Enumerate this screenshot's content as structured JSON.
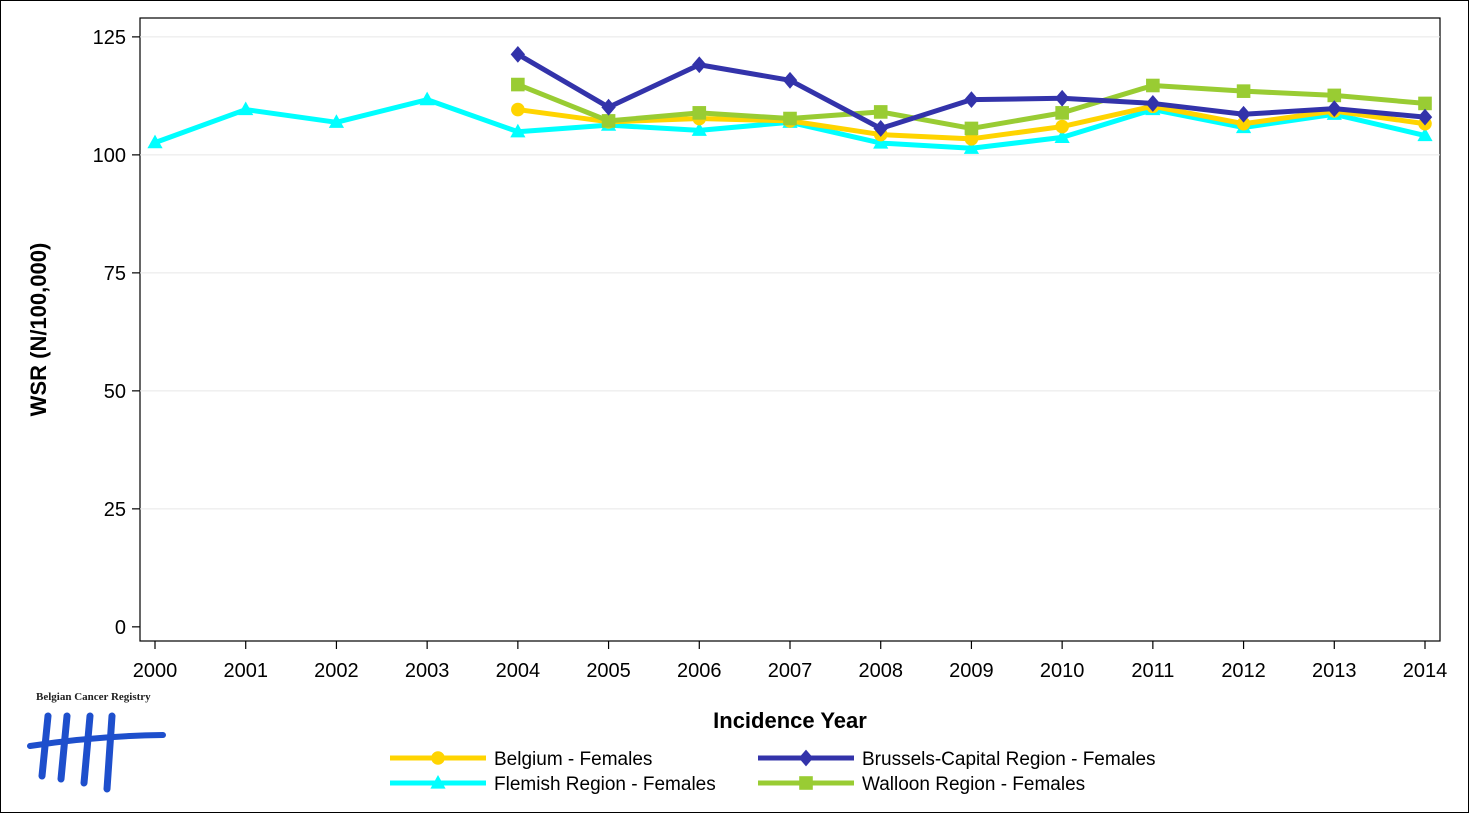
{
  "chart_data": {
    "type": "line",
    "title": "",
    "xlabel": "Incidence Year",
    "ylabel": "WSR (N/100,000)",
    "x": [
      2000,
      2001,
      2002,
      2003,
      2004,
      2005,
      2006,
      2007,
      2008,
      2009,
      2010,
      2011,
      2012,
      2013,
      2014
    ],
    "xticks": [
      "2000",
      "2001",
      "2002",
      "2003",
      "2004",
      "2005",
      "2006",
      "2007",
      "2008",
      "2009",
      "2010",
      "2011",
      "2012",
      "2013",
      "2014"
    ],
    "ylim": [
      -3,
      129
    ],
    "yticks": [
      0,
      25,
      50,
      75,
      100,
      125
    ],
    "grid": "horizontal",
    "legend_position": "bottom",
    "series": [
      {
        "name": "Belgium - Females",
        "color": "#FFD400",
        "marker": "circle",
        "values": [
          null,
          null,
          null,
          null,
          109.6,
          107.0,
          107.7,
          107.2,
          104.3,
          103.4,
          106.0,
          110.3,
          106.6,
          109.3,
          106.6
        ]
      },
      {
        "name": "Brussels-Capital Region - Females",
        "color": "#3333AA",
        "marker": "diamond",
        "values": [
          null,
          null,
          null,
          null,
          121.3,
          110.1,
          119.1,
          115.8,
          105.6,
          111.7,
          112.0,
          110.9,
          108.6,
          109.8,
          108.0
        ]
      },
      {
        "name": "Flemish Region - Females",
        "color": "#00FFFF",
        "marker": "triangle",
        "values": [
          102.6,
          109.6,
          106.9,
          111.7,
          104.9,
          106.3,
          105.2,
          106.9,
          102.5,
          101.4,
          103.7,
          109.6,
          105.8,
          108.6,
          104.1
        ]
      },
      {
        "name": "Walloon Region - Females",
        "color": "#99CC33",
        "marker": "square",
        "values": [
          null,
          null,
          null,
          null,
          114.9,
          107.2,
          108.9,
          107.7,
          109.1,
          105.6,
          108.9,
          114.7,
          113.5,
          112.6,
          110.9
        ]
      }
    ]
  },
  "logo": {
    "text": "Belgian Cancer Registry",
    "color": "#1E4FCC"
  }
}
